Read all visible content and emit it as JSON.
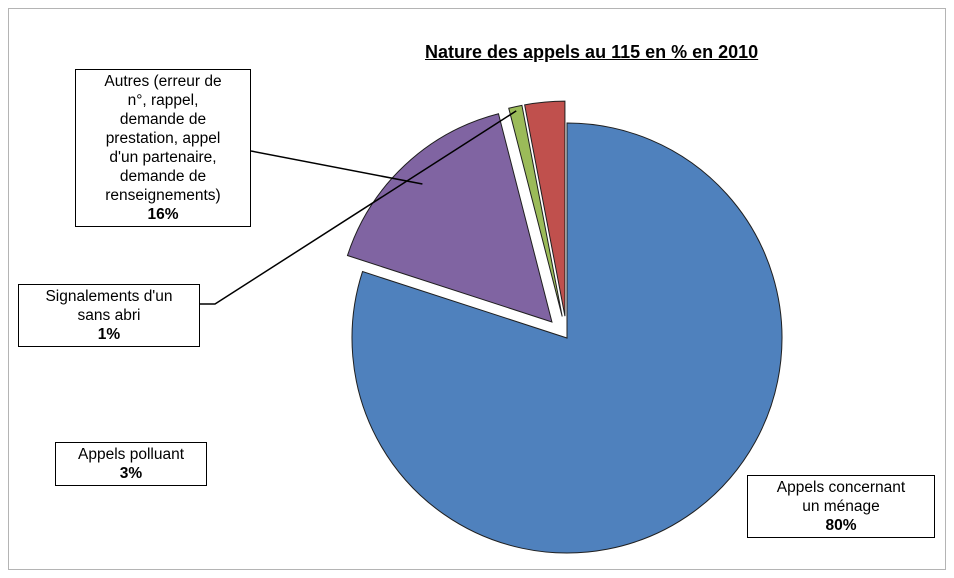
{
  "chart_data": {
    "type": "pie",
    "title": "Nature des appels au 115 en % en 2010",
    "slices": [
      {
        "name": "Appels concernant un ménage",
        "value": 80,
        "label": "80%",
        "color": "#4F81BD",
        "exploded": false
      },
      {
        "name": "Autres (erreur de n°, rappel, demande de prestation, appel d'un partenaire, demande de renseignements)",
        "value": 16,
        "label": "16%",
        "color": "#8064A2",
        "exploded": true
      },
      {
        "name": "Signalements d'un sans abri",
        "value": 1,
        "label": "1%",
        "color": "#9BBB59",
        "exploded": true
      },
      {
        "name": "Appels polluant",
        "value": 3,
        "label": "3%",
        "color": "#C0504D",
        "exploded": true
      }
    ],
    "data_labels": [
      {
        "lines": [
          "Appels concernant",
          "un ménage"
        ],
        "pct": "80%"
      },
      {
        "lines": [
          "Autres (erreur de",
          "n°, rappel,",
          "demande de",
          "prestation, appel",
          "d'un partenaire,",
          "demande de",
          "renseignements)"
        ],
        "pct": "16%"
      },
      {
        "lines": [
          "Signalements d'un",
          "sans abri"
        ],
        "pct": "1%"
      },
      {
        "lines": [
          "Appels polluant"
        ],
        "pct": "3%"
      }
    ],
    "legend": "none"
  }
}
